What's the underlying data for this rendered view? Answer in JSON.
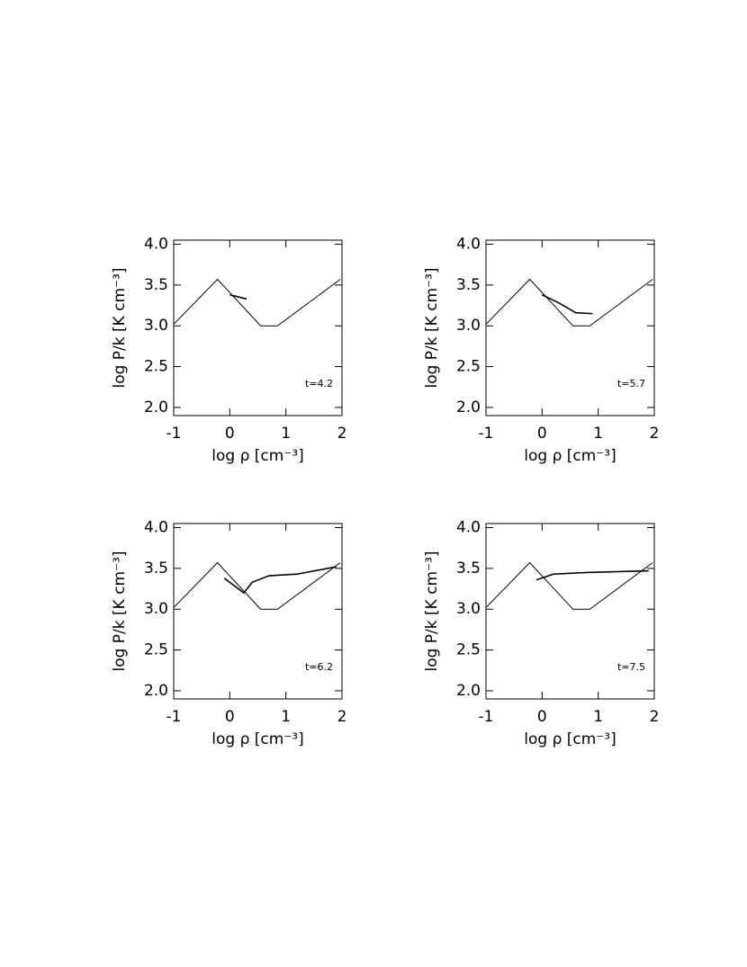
{
  "chart_data": [
    {
      "type": "line",
      "xlabel": "log ρ [cm⁻³]",
      "ylabel": "log P/k [K cm⁻³]",
      "annotation": "t=4.2",
      "xlim": [
        -1,
        2
      ],
      "ylim": [
        1.9,
        4.05
      ],
      "xticks": [
        -1,
        0,
        1,
        2
      ],
      "yticks": [
        {
          "value": 2,
          "label": "2.0"
        },
        {
          "value": 2.5,
          "label": "2.5"
        },
        {
          "value": 3,
          "label": "3.0"
        },
        {
          "value": 3.5,
          "label": "3.5"
        },
        {
          "value": 4,
          "label": "4.0"
        }
      ],
      "series": [
        {
          "color": "#000",
          "x": [
            -1,
            -0.22,
            0.55,
            0.85,
            1.97
          ],
          "values": [
            3.02,
            3.57,
            3.0,
            3.0,
            3.57
          ]
        },
        {
          "color": "#000",
          "x": [
            0,
            0.3
          ],
          "values": [
            3.38,
            3.33
          ]
        }
      ]
    },
    {
      "type": "line",
      "xlabel": "log ρ [cm⁻³]",
      "ylabel": "log P/k [K cm⁻³]",
      "annotation": "t=5.7",
      "xlim": [
        -1,
        2
      ],
      "ylim": [
        1.9,
        4.05
      ],
      "xticks": [
        -1,
        0,
        1,
        2
      ],
      "yticks": [
        {
          "value": 2,
          "label": "2.0"
        },
        {
          "value": 2.5,
          "label": "2.5"
        },
        {
          "value": 3,
          "label": "3.0"
        },
        {
          "value": 3.5,
          "label": "3.5"
        },
        {
          "value": 4,
          "label": "4.0"
        }
      ],
      "series": [
        {
          "color": "#000",
          "x": [
            -1,
            -0.22,
            0.55,
            0.85,
            1.97
          ],
          "values": [
            3.02,
            3.57,
            3.0,
            3.0,
            3.57
          ]
        },
        {
          "color": "#000",
          "x": [
            0,
            0.3,
            0.6,
            0.9
          ],
          "values": [
            3.38,
            3.28,
            3.16,
            3.15
          ]
        }
      ]
    },
    {
      "type": "line",
      "xlabel": "log ρ [cm⁻³]",
      "ylabel": "log P/k [K cm⁻³]",
      "annotation": "t=6.2",
      "xlim": [
        -1,
        2
      ],
      "ylim": [
        1.9,
        4.05
      ],
      "xticks": [
        -1,
        0,
        1,
        2
      ],
      "yticks": [
        {
          "value": 2,
          "label": "2.0"
        },
        {
          "value": 2.5,
          "label": "2.5"
        },
        {
          "value": 3,
          "label": "3.0"
        },
        {
          "value": 3.5,
          "label": "3.5"
        },
        {
          "value": 4,
          "label": "4.0"
        }
      ],
      "series": [
        {
          "color": "#000",
          "x": [
            -1,
            -0.22,
            0.55,
            0.85,
            1.97
          ],
          "values": [
            3.02,
            3.57,
            3.0,
            3.0,
            3.57
          ]
        },
        {
          "color": "#000",
          "x": [
            -0.1,
            0.25,
            0.4,
            0.7,
            1.2,
            1.9
          ],
          "values": [
            3.38,
            3.2,
            3.33,
            3.41,
            3.43,
            3.52
          ]
        }
      ]
    },
    {
      "type": "line",
      "xlabel": "log ρ [cm⁻³]",
      "ylabel": "log P/k [K cm⁻³]",
      "annotation": "t=7.5",
      "xlim": [
        -1,
        2
      ],
      "ylim": [
        1.9,
        4.05
      ],
      "xticks": [
        -1,
        0,
        1,
        2
      ],
      "yticks": [
        {
          "value": 2,
          "label": "2.0"
        },
        {
          "value": 2.5,
          "label": "2.5"
        },
        {
          "value": 3,
          "label": "3.0"
        },
        {
          "value": 3.5,
          "label": "3.5"
        },
        {
          "value": 4,
          "label": "4.0"
        }
      ],
      "series": [
        {
          "color": "#000",
          "x": [
            -1,
            -0.22,
            0.55,
            0.85,
            1.97
          ],
          "values": [
            3.02,
            3.57,
            3.0,
            3.0,
            3.57
          ]
        },
        {
          "color": "#000",
          "x": [
            -0.1,
            0.2,
            0.8,
            1.9
          ],
          "values": [
            3.36,
            3.43,
            3.45,
            3.47
          ]
        }
      ]
    }
  ]
}
